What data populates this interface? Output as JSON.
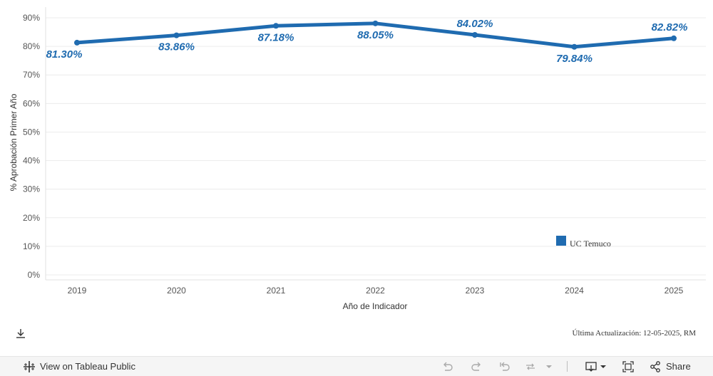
{
  "chart_data": {
    "type": "line",
    "x": [
      "2019",
      "2020",
      "2021",
      "2022",
      "2023",
      "2024",
      "2025"
    ],
    "series": [
      {
        "name": "UC Temuco",
        "values": [
          81.3,
          83.86,
          87.18,
          88.05,
          84.02,
          79.84,
          82.82
        ],
        "labels": [
          "81.30%",
          "83.86%",
          "87.18%",
          "88.05%",
          "84.02%",
          "79.84%",
          "82.82%"
        ],
        "color": "#1f6bb0"
      }
    ],
    "y_ticks": [
      0,
      10,
      20,
      30,
      40,
      50,
      60,
      70,
      80,
      90
    ],
    "y_tick_labels": [
      "0%",
      "10%",
      "20%",
      "30%",
      "40%",
      "50%",
      "60%",
      "70%",
      "80%",
      "90%"
    ],
    "ylim": [
      0,
      92
    ],
    "xlabel": "Año de Indicador",
    "ylabel": "% Aprobación Primer Año",
    "grid": true,
    "legend": {
      "placement": "bottom-right",
      "label": "UC Temuco"
    }
  },
  "footer": {
    "updated": "Última Actualización: 12-05-2025, RM"
  },
  "toolbar": {
    "view_label": "View on Tableau Public",
    "share_label": "Share",
    "icons": [
      "tableau-logo-icon",
      "undo-icon",
      "redo-icon",
      "revert-icon",
      "refresh-icon",
      "dropdown-icon",
      "download-icon",
      "fullscreen-icon",
      "share-icon"
    ]
  },
  "colors": {
    "accent": "#1f6bb0",
    "grid": "#ececec",
    "toolbar_bg": "#f5f5f5"
  }
}
